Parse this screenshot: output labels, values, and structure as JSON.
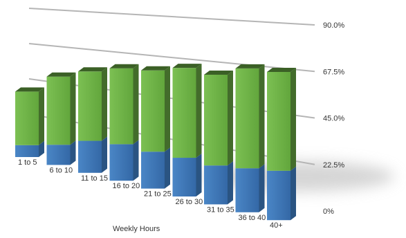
{
  "chart_data": {
    "type": "bar",
    "stacked": true,
    "three_d": true,
    "title": "",
    "xlabel": "Weekly Hours",
    "ylabel": "",
    "ylim": [
      0,
      90
    ],
    "y_ticks": [
      0,
      22.5,
      45,
      67.5,
      90
    ],
    "y_tick_labels": [
      "0%",
      "22.5%",
      "45.0%",
      "67.5%",
      "90.0%"
    ],
    "grid": true,
    "legend": "none",
    "categories": [
      "1 to 5",
      "6 to 10",
      "11 to 15",
      "16 to 20",
      "21 to 25",
      "26 to 30",
      "31 to 35",
      "36 to 40",
      "40+"
    ],
    "series": [
      {
        "values": [
          10,
          16,
          24,
          26,
          25,
          25,
          24,
          26,
          28
        ]
      },
      {
        "values": [
          45,
          54,
          52,
          54,
          55,
          58,
          56,
          59,
          56
        ]
      }
    ],
    "colors": {
      "series_bottom": "#3b74b4",
      "series_top": "#6cae45",
      "gridline": "#b5b5b5",
      "shadow": "#c8c8c8"
    }
  }
}
